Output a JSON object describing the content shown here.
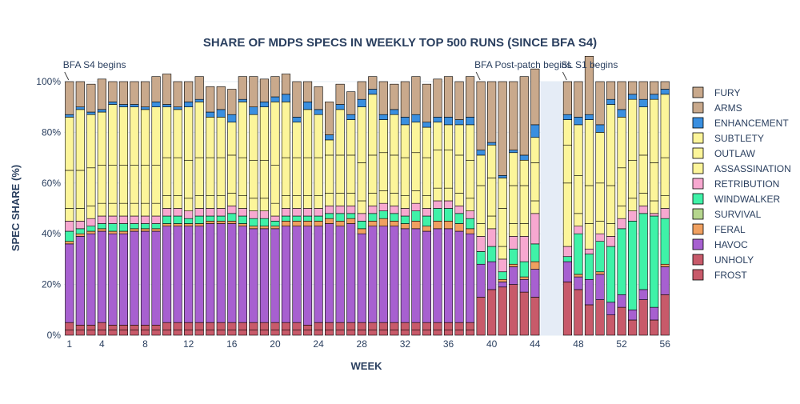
{
  "chart_data": {
    "type": "bar",
    "stacked": true,
    "title": "SHARE OF MDPS SPECS IN WEEKLY TOP 500 RUNS (SINCE BFA S4)",
    "xlabel": "WEEK",
    "ylabel": "SPEC SHARE (%)",
    "ylim": [
      0,
      100
    ],
    "xlim": [
      0.5,
      56.5
    ],
    "x_ticks": [
      1,
      4,
      8,
      12,
      16,
      20,
      24,
      28,
      32,
      36,
      40,
      44,
      48,
      52,
      56
    ],
    "y_ticks": [
      "0%",
      "20%",
      "40%",
      "60%",
      "80%",
      "100%"
    ],
    "weeks": [
      1,
      2,
      3,
      4,
      5,
      6,
      7,
      8,
      9,
      10,
      11,
      12,
      13,
      14,
      15,
      16,
      17,
      18,
      19,
      20,
      21,
      22,
      23,
      24,
      25,
      26,
      27,
      28,
      29,
      30,
      31,
      32,
      33,
      34,
      35,
      36,
      37,
      38,
      39,
      40,
      41,
      42,
      43,
      44,
      47,
      48,
      49,
      50,
      51,
      52,
      53,
      54,
      55,
      56
    ],
    "grid": true,
    "legend_position": "right",
    "shaded_region": [
      44.5,
      46.5
    ],
    "annotations": [
      {
        "text": "BFA S4 begins",
        "x": 1
      },
      {
        "text": "BFA Post-patch begins",
        "x": 39
      },
      {
        "text": "SL S1 begins",
        "x": 47
      }
    ],
    "series": [
      {
        "name": "FROST",
        "color": "#c85a6a",
        "values": [
          2,
          2,
          2,
          2,
          2,
          2,
          2,
          2,
          2,
          2,
          2,
          2,
          2,
          2,
          2,
          2,
          2,
          2,
          2,
          2,
          2,
          2,
          2,
          2,
          2,
          2,
          2,
          2,
          2,
          2,
          2,
          2,
          2,
          2,
          2,
          2,
          2,
          2,
          15,
          18,
          19,
          20,
          17,
          15,
          21,
          18,
          12,
          14,
          8,
          11,
          6,
          14,
          6,
          16
        ]
      },
      {
        "name": "UNHOLY",
        "color": "#c85a6a",
        "values": [
          3,
          2,
          2,
          3,
          2,
          2,
          2,
          2,
          2,
          3,
          3,
          3,
          3,
          3,
          3,
          3,
          3,
          3,
          3,
          3,
          3,
          3,
          2,
          3,
          3,
          3,
          3,
          3,
          3,
          3,
          3,
          3,
          3,
          3,
          3,
          3,
          3,
          3,
          0,
          0,
          0,
          0,
          0,
          0,
          0,
          0,
          0,
          0,
          0,
          0,
          0,
          0,
          0,
          0
        ]
      },
      {
        "name": "HAVOC",
        "color": "#a760d0",
        "values": [
          31,
          35,
          36,
          36,
          36,
          36,
          37,
          37,
          37,
          38,
          38,
          38,
          38,
          39,
          39,
          39,
          38,
          37,
          37,
          37,
          38,
          38,
          39,
          38,
          39,
          38,
          39,
          35,
          38,
          38,
          38,
          37,
          37,
          36,
          37,
          37,
          36,
          35,
          13,
          11,
          2,
          7,
          5,
          11,
          8,
          5,
          10,
          10,
          5,
          5,
          4,
          4,
          5,
          11
        ]
      },
      {
        "name": "FERAL",
        "color": "#f0a060",
        "values": [
          1,
          1,
          1,
          1,
          1,
          1,
          1,
          1,
          1,
          1,
          1,
          1,
          1,
          1,
          1,
          1,
          1,
          1,
          1,
          1,
          2,
          2,
          2,
          2,
          2,
          2,
          2,
          2,
          2,
          3,
          2,
          2,
          3,
          2,
          3,
          3,
          3,
          2,
          0,
          0,
          1,
          1,
          1,
          3,
          0,
          1,
          0,
          1,
          0,
          0,
          0,
          0,
          0,
          1
        ]
      },
      {
        "name": "SURVIVAL",
        "color": "#b6d68e",
        "values": [
          0,
          0,
          0,
          0,
          0,
          0,
          0,
          0,
          0,
          0,
          0,
          0,
          0,
          0,
          0,
          0,
          0,
          0,
          0,
          0,
          0,
          0,
          0,
          0,
          0,
          0,
          0,
          0,
          0,
          0,
          0,
          0,
          0,
          0,
          0,
          0,
          0,
          0,
          0,
          0,
          0,
          0,
          0,
          0,
          0,
          0,
          0,
          0,
          0,
          0,
          0,
          0,
          0,
          0
        ]
      },
      {
        "name": "WINDWALKER",
        "color": "#3ff2a8",
        "values": [
          4,
          2,
          2,
          2,
          3,
          3,
          2,
          2,
          2,
          3,
          3,
          2,
          3,
          2,
          2,
          3,
          3,
          3,
          3,
          2,
          2,
          2,
          2,
          2,
          2,
          3,
          2,
          3,
          3,
          3,
          3,
          3,
          4,
          4,
          5,
          5,
          4,
          4,
          5,
          6,
          3,
          6,
          6,
          7,
          2,
          16,
          10,
          12,
          22,
          26,
          35,
          30,
          36,
          18
        ]
      },
      {
        "name": "RETRIBUTION",
        "color": "#f7a8d0",
        "values": [
          4,
          3,
          3,
          3,
          3,
          3,
          3,
          3,
          3,
          3,
          3,
          3,
          3,
          3,
          3,
          3,
          3,
          3,
          3,
          2,
          3,
          3,
          3,
          3,
          3,
          3,
          3,
          3,
          3,
          3,
          3,
          3,
          3,
          3,
          3,
          3,
          3,
          3,
          6,
          7,
          5,
          5,
          10,
          12,
          4,
          3,
          2,
          3,
          4,
          4,
          4,
          3,
          1,
          4
        ]
      },
      {
        "name": "ASSASSINATION",
        "color": "#fcf59a",
        "values": [
          5,
          5,
          5,
          5,
          5,
          5,
          5,
          5,
          5,
          5,
          5,
          5,
          5,
          5,
          5,
          5,
          5,
          5,
          5,
          5,
          5,
          5,
          5,
          5,
          5,
          5,
          5,
          5,
          5,
          5,
          5,
          5,
          5,
          5,
          5,
          5,
          5,
          5,
          5,
          5,
          5,
          5,
          5,
          5,
          25,
          5,
          10,
          5,
          5,
          5,
          5,
          5,
          5,
          5
        ]
      },
      {
        "name": "OUTLAW",
        "color": "#fcf59a",
        "values": [
          15,
          15,
          15,
          15,
          15,
          15,
          15,
          15,
          15,
          15,
          15,
          15,
          15,
          15,
          15,
          15,
          15,
          15,
          15,
          15,
          15,
          15,
          15,
          15,
          15,
          15,
          15,
          15,
          15,
          15,
          15,
          15,
          15,
          15,
          15,
          15,
          15,
          15,
          15,
          15,
          15,
          15,
          15,
          15,
          15,
          15,
          15,
          15,
          15,
          15,
          15,
          15,
          15,
          15
        ]
      },
      {
        "name": "SUBTLETY",
        "color": "#fcf59a",
        "values": [
          21,
          24,
          21,
          21,
          24,
          23,
          23,
          22,
          23,
          20,
          19,
          21,
          22,
          16,
          16,
          13,
          22,
          18,
          21,
          25,
          22,
          14,
          19,
          17,
          6,
          18,
          14,
          22,
          24,
          13,
          16,
          13,
          12,
          12,
          11,
          10,
          12,
          14,
          12,
          13,
          12,
          13,
          10,
          10,
          10,
          20,
          26,
          20,
          32,
          20,
          24,
          19,
          25,
          25
        ]
      },
      {
        "name": "ENHANCEMENT",
        "color": "#3a8fe0",
        "values": [
          1,
          1,
          1,
          1,
          1,
          1,
          1,
          1,
          2,
          1,
          1,
          2,
          1,
          2,
          3,
          3,
          1,
          3,
          2,
          2,
          3,
          2,
          3,
          2,
          2,
          2,
          2,
          3,
          2,
          2,
          2,
          3,
          3,
          2,
          2,
          3,
          2,
          3,
          2,
          1,
          1,
          1,
          2,
          5,
          2,
          3,
          2,
          3,
          2,
          3,
          2,
          3,
          2,
          2
        ]
      },
      {
        "name": "ARMS",
        "color": "#c9a98c",
        "values": [
          0,
          0,
          0,
          0,
          0,
          0,
          0,
          0,
          0,
          0,
          0,
          0,
          0,
          0,
          0,
          0,
          0,
          0,
          0,
          0,
          0,
          0,
          0,
          0,
          0,
          0,
          0,
          0,
          0,
          0,
          0,
          0,
          0,
          0,
          0,
          0,
          0,
          0,
          0,
          0,
          0,
          0,
          0,
          0,
          0,
          0,
          0,
          0,
          0,
          0,
          0,
          0,
          0,
          0
        ]
      },
      {
        "name": "FURY",
        "color": "#c9a98c",
        "values": [
          13,
          10,
          11,
          12,
          8,
          9,
          9,
          10,
          10,
          12,
          10,
          8,
          9,
          10,
          9,
          10,
          9,
          12,
          9,
          8,
          8,
          14,
          8,
          9,
          13,
          8,
          9,
          7,
          5,
          13,
          10,
          14,
          15,
          15,
          15,
          16,
          15,
          16,
          27,
          24,
          37,
          27,
          31,
          22,
          13,
          14,
          23,
          17,
          7,
          11,
          5,
          7,
          5,
          3
        ]
      }
    ]
  }
}
